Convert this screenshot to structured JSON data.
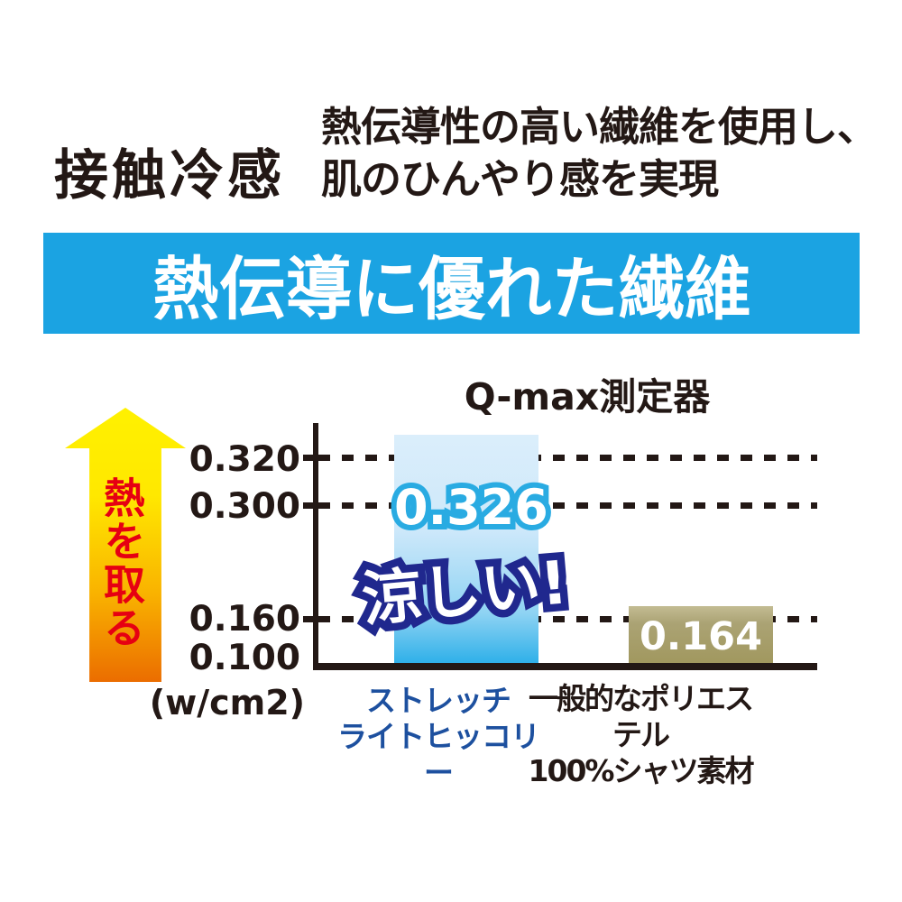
{
  "header": {
    "title": "接触冷感",
    "subtitle_line1": "熱伝導性の高い繊維を使用し、",
    "subtitle_line2": "肌のひんやり感を実現",
    "banner": "熱伝導に優れた繊維"
  },
  "colors": {
    "banner_blue": "#1ba3e2",
    "value_stroke_blue": "#29abe2",
    "cool_stroke_navy": "#20288e",
    "label_blue": "#1d509f",
    "heat_red": "#e60012",
    "ink": "#231815",
    "olive_bar": "#a89f69",
    "arrow_yellow": "#fff100",
    "arrow_orange": "#eb6d00"
  },
  "chart_data": {
    "type": "bar",
    "title": "Q-max測定器",
    "unit_label": "(w/cm2)",
    "arrow_label": "熱を取る",
    "ylim": [
      0.1,
      0.36
    ],
    "ytick_labels": [
      "0.320",
      "0.300",
      "0.160",
      "0.100"
    ],
    "grid": "dashed horizontal lines at 0.320, 0.300, 0.160",
    "legend_position": "none",
    "bars": [
      {
        "category_line1": "ストレッチ",
        "category_line2": "ライトヒッコリー",
        "value": 0.326,
        "value_label": "0.326",
        "annotation": "涼しい!",
        "bar_style": "light-blue gradient"
      },
      {
        "category_line1": "一般的なポリエステル",
        "category_line2": "100%シャツ素材",
        "value": 0.164,
        "value_label": "0.164",
        "annotation": "",
        "bar_style": "olive"
      }
    ]
  }
}
